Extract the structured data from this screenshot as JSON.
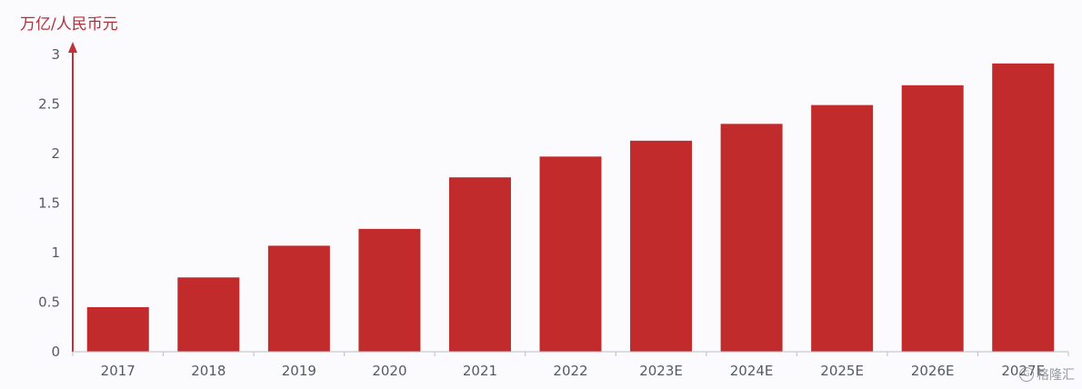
{
  "chart_data": {
    "type": "bar",
    "unit_label": "万亿/人民币元",
    "categories": [
      "2017",
      "2018",
      "2019",
      "2020",
      "2021",
      "2022",
      "2023E",
      "2024E",
      "2025E",
      "2026E",
      "2027E"
    ],
    "values": [
      0.45,
      0.75,
      1.07,
      1.24,
      1.76,
      1.97,
      2.13,
      2.3,
      2.49,
      2.69,
      2.91
    ],
    "yticks": [
      "0",
      "0.5",
      "1",
      "1.5",
      "2",
      "2.5",
      "3"
    ],
    "ylim": [
      0,
      3
    ],
    "grid": false,
    "bar_color": "#c22b2b",
    "axis_color": "#c0303a"
  },
  "watermark": {
    "text": "格隆汇",
    "icon": "gelonghui-logo-icon"
  }
}
